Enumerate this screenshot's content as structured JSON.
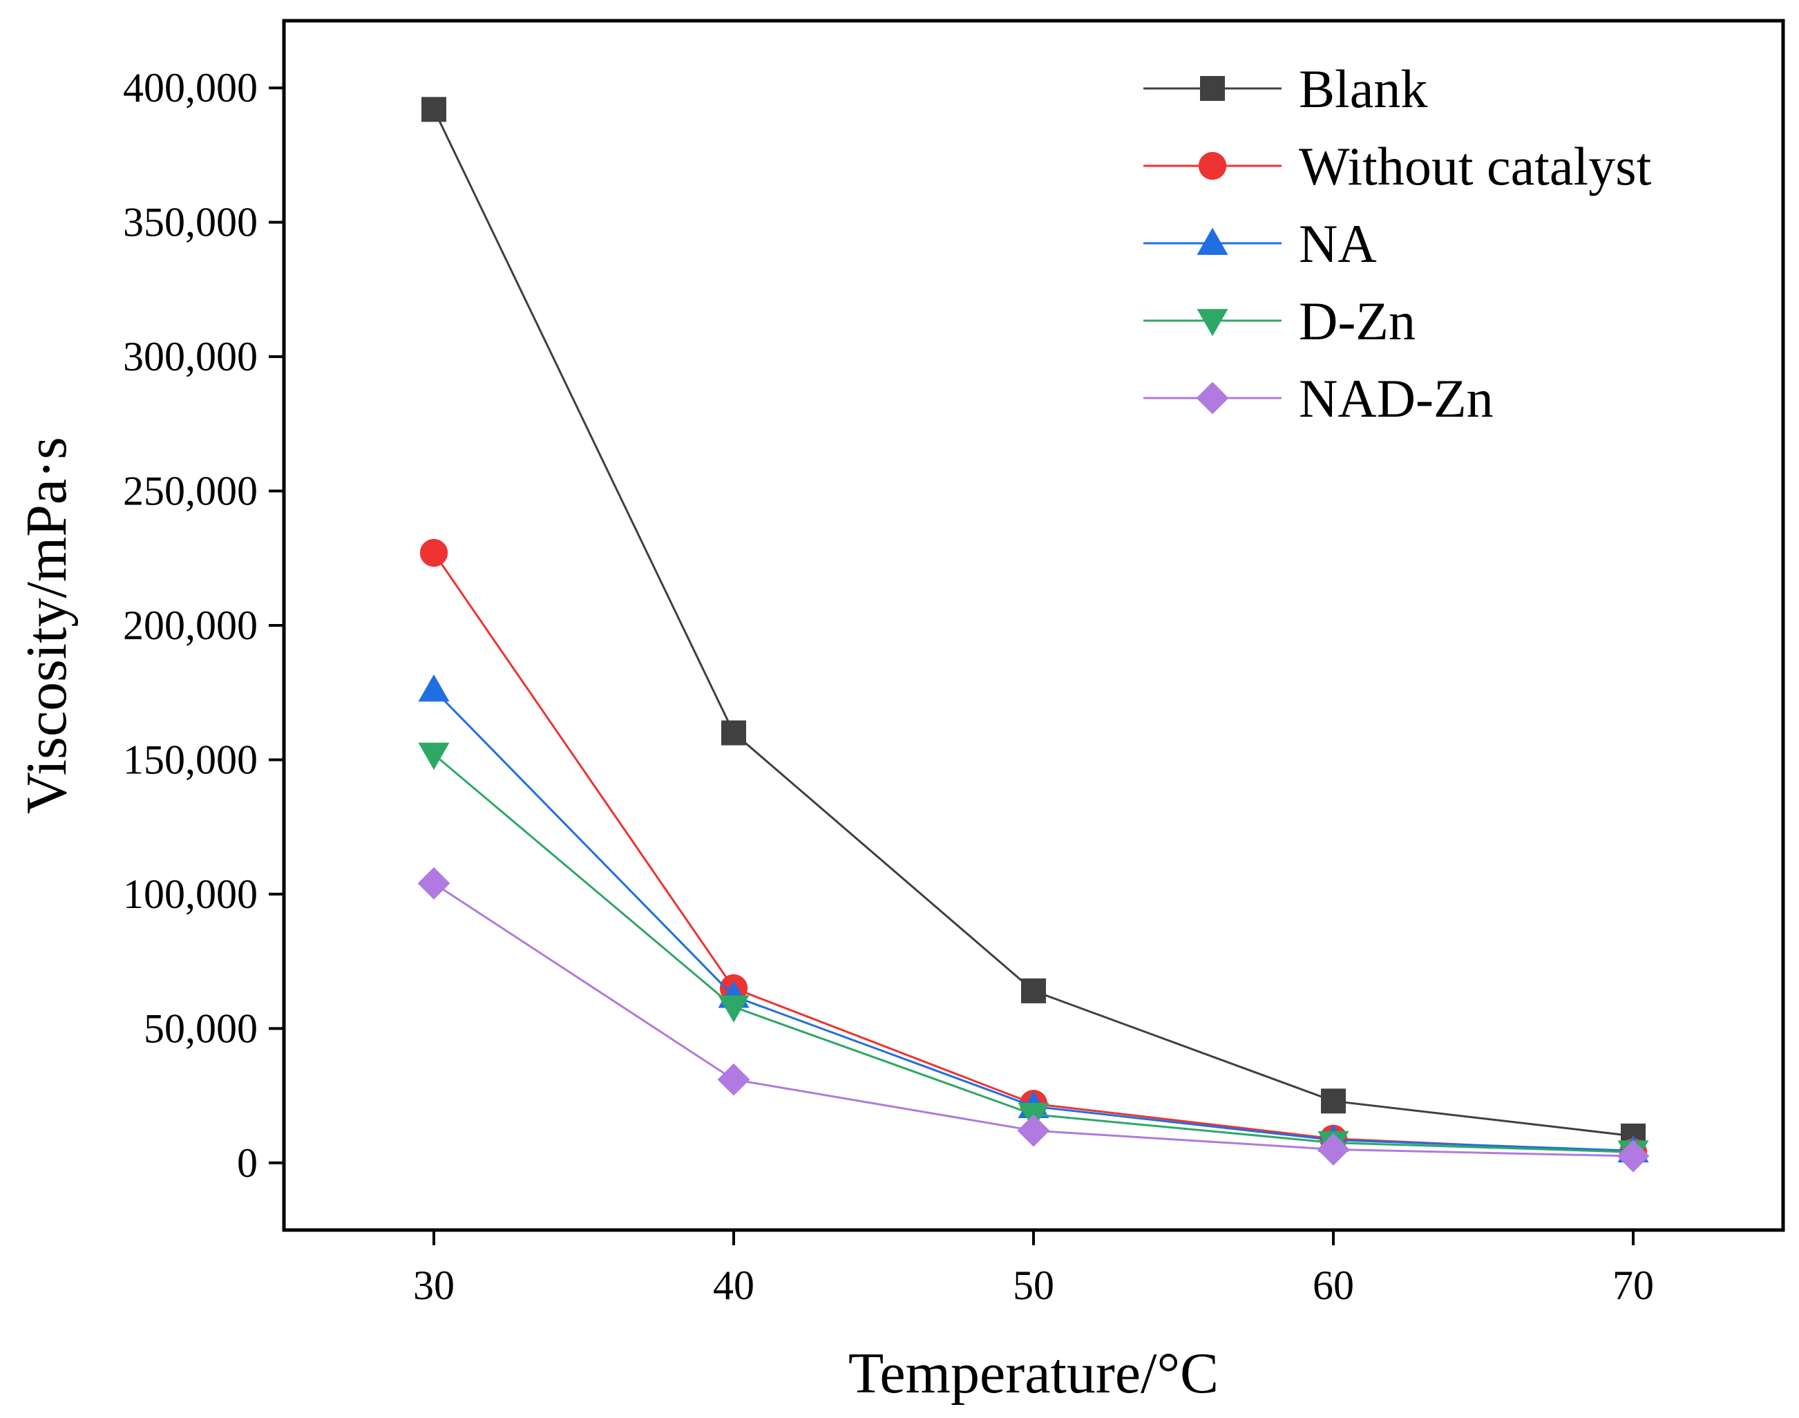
{
  "chart_data": {
    "type": "line",
    "title": "",
    "xlabel": "Temperature/°C",
    "ylabel": "Viscosity/mPa·s",
    "x": [
      30,
      40,
      50,
      60,
      70
    ],
    "xlim": [
      25,
      75
    ],
    "ylim": [
      -25000,
      425000
    ],
    "xticks": [
      30,
      40,
      50,
      60,
      70
    ],
    "xtick_labels": [
      "30",
      "40",
      "50",
      "60",
      "70"
    ],
    "yticks": [
      0,
      50000,
      100000,
      150000,
      200000,
      250000,
      300000,
      350000,
      400000
    ],
    "ytick_labels": [
      "0",
      "50,000",
      "100,000",
      "150,000",
      "200,000",
      "250,000",
      "300,000",
      "350,000",
      "400,000"
    ],
    "grid": false,
    "legend_position": "top-right",
    "series": [
      {
        "name": "Blank",
        "color": "#404040",
        "marker": "square",
        "values": [
          392000,
          160000,
          64000,
          23000,
          10000
        ]
      },
      {
        "name": "Without catalyst",
        "color": "#ee3333",
        "marker": "circle",
        "values": [
          227000,
          65000,
          22000,
          9000,
          4000
        ]
      },
      {
        "name": "NA",
        "color": "#1f6fe0",
        "marker": "triangle-up",
        "values": [
          176000,
          62000,
          21000,
          8500,
          4500
        ]
      },
      {
        "name": "D-Zn",
        "color": "#2ea866",
        "marker": "triangle-down",
        "values": [
          152000,
          58000,
          18000,
          7500,
          4000
        ]
      },
      {
        "name": "NAD-Zn",
        "color": "#b07ae0",
        "marker": "diamond",
        "values": [
          104000,
          31000,
          12000,
          5000,
          2500
        ]
      }
    ]
  }
}
